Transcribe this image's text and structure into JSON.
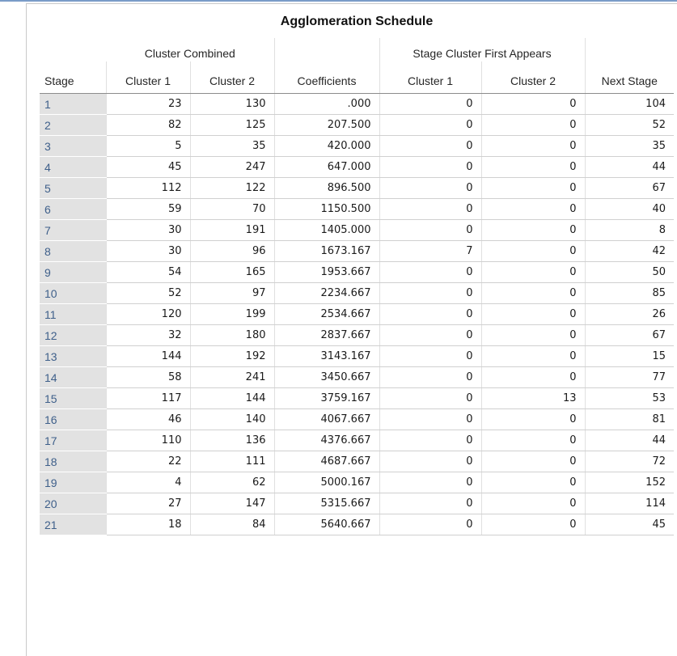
{
  "table": {
    "title": "Agglomeration Schedule",
    "group_cluster_combined": "Cluster Combined",
    "group_stage_first": "Stage Cluster First Appears",
    "col_stage": "Stage",
    "col_cluster1": "Cluster 1",
    "col_cluster2": "Cluster 2",
    "col_coefficients": "Coefficients",
    "col_stage_cluster1": "Cluster 1",
    "col_stage_cluster2": "Cluster 2",
    "col_next_stage": "Next Stage",
    "rows": [
      [
        "1",
        "23",
        "130",
        ".000",
        "0",
        "0",
        "104"
      ],
      [
        "2",
        "82",
        "125",
        "207.500",
        "0",
        "0",
        "52"
      ],
      [
        "3",
        "5",
        "35",
        "420.000",
        "0",
        "0",
        "35"
      ],
      [
        "4",
        "45",
        "247",
        "647.000",
        "0",
        "0",
        "44"
      ],
      [
        "5",
        "112",
        "122",
        "896.500",
        "0",
        "0",
        "67"
      ],
      [
        "6",
        "59",
        "70",
        "1150.500",
        "0",
        "0",
        "40"
      ],
      [
        "7",
        "30",
        "191",
        "1405.000",
        "0",
        "0",
        "8"
      ],
      [
        "8",
        "30",
        "96",
        "1673.167",
        "7",
        "0",
        "42"
      ],
      [
        "9",
        "54",
        "165",
        "1953.667",
        "0",
        "0",
        "50"
      ],
      [
        "10",
        "52",
        "97",
        "2234.667",
        "0",
        "0",
        "85"
      ],
      [
        "11",
        "120",
        "199",
        "2534.667",
        "0",
        "0",
        "26"
      ],
      [
        "12",
        "32",
        "180",
        "2837.667",
        "0",
        "0",
        "67"
      ],
      [
        "13",
        "144",
        "192",
        "3143.167",
        "0",
        "0",
        "15"
      ],
      [
        "14",
        "58",
        "241",
        "3450.667",
        "0",
        "0",
        "77"
      ],
      [
        "15",
        "117",
        "144",
        "3759.167",
        "0",
        "13",
        "53"
      ],
      [
        "16",
        "46",
        "140",
        "4067.667",
        "0",
        "0",
        "81"
      ],
      [
        "17",
        "110",
        "136",
        "4376.667",
        "0",
        "0",
        "44"
      ],
      [
        "18",
        "22",
        "111",
        "4687.667",
        "0",
        "0",
        "72"
      ],
      [
        "19",
        "4",
        "62",
        "5000.167",
        "0",
        "0",
        "152"
      ],
      [
        "20",
        "27",
        "147",
        "5315.667",
        "0",
        "0",
        "114"
      ],
      [
        "21",
        "18",
        "84",
        "5640.667",
        "0",
        "0",
        "45"
      ]
    ]
  }
}
